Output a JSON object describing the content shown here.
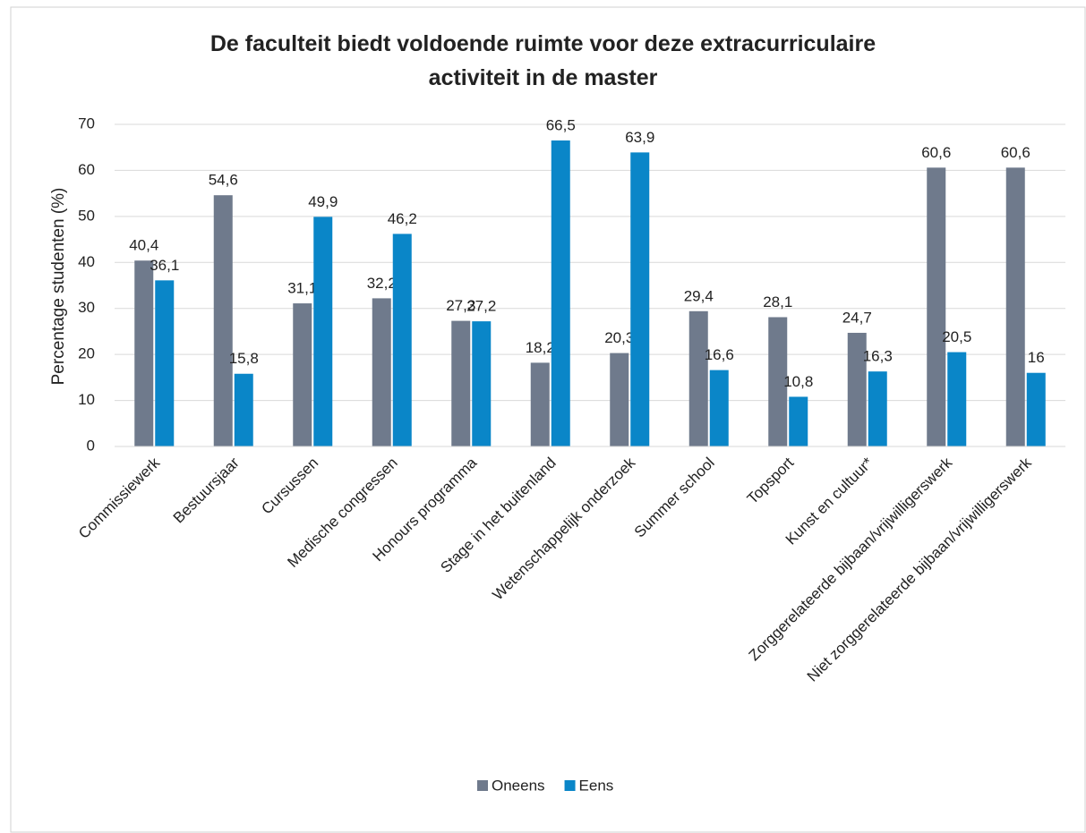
{
  "chart_data": {
    "type": "bar",
    "title": "De faculteit biedt voldoende ruimte voor deze extracurriculaire activiteit in de master",
    "y_label": "Percentage studenten (%)",
    "categories": [
      "Commissiewerk",
      "Bestuursjaar",
      "Cursussen",
      "Medische congressen",
      "Honours programma",
      "Stage in het buitenland",
      "Wetenschappelijk onderzoek",
      "Summer school",
      "Topsport",
      "Kunst en cultuur*",
      "Zorggerelateerde bijbaan/vrijwilligerswerk",
      "Niet zorggerelateerde bijbaan/vrijwilligerswerk"
    ],
    "series": [
      {
        "name": "Oneens",
        "color": "#6f7a8c",
        "values": [
          40.4,
          54.6,
          31.1,
          32.2,
          27.3,
          18.2,
          20.3,
          29.4,
          28.1,
          24.7,
          60.6,
          60.6
        ],
        "value_labels": [
          "40,4",
          "54,6",
          "31,1",
          "32,2",
          "27,3",
          "18,2",
          "20,3",
          "29,4",
          "28,1",
          "24,7",
          "60,6",
          "60,6"
        ]
      },
      {
        "name": "Eens",
        "color": "#0a86c8",
        "values": [
          36.1,
          15.8,
          49.9,
          46.2,
          27.2,
          66.5,
          63.9,
          16.6,
          10.8,
          16.3,
          20.5,
          16
        ],
        "value_labels": [
          "36,1",
          "15,8",
          "49,9",
          "46,2",
          "27,2",
          "66,5",
          "63,9",
          "16,6",
          "10,8",
          "16,3",
          "20,5",
          "16"
        ]
      }
    ],
    "ylim": [
      0,
      70
    ],
    "yticks": [
      0,
      10,
      20,
      30,
      40,
      50,
      60,
      70
    ],
    "grid": true,
    "legend": "bottom"
  }
}
